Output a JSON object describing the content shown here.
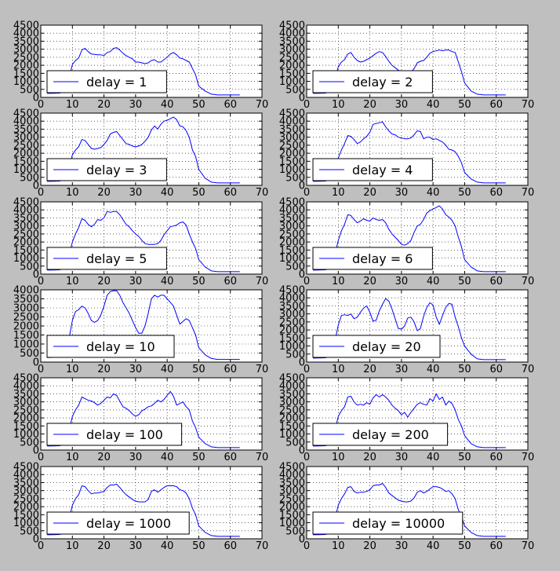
{
  "chart_data": [
    {
      "type": "line",
      "legend": "delay = 1",
      "xlim": [
        0,
        70
      ],
      "ylim": [
        0,
        4500
      ],
      "x": [
        2,
        4,
        6,
        8,
        10,
        11,
        12,
        13,
        14,
        15,
        16,
        17,
        18,
        19,
        20,
        21,
        22,
        23,
        24,
        25,
        26,
        27,
        28,
        29,
        30,
        31,
        32,
        33,
        34,
        35,
        36,
        37,
        38,
        39,
        40,
        41,
        42,
        43,
        44,
        45,
        46,
        47,
        48,
        49,
        50,
        52,
        54,
        56,
        58,
        60,
        62,
        63
      ],
      "values": [
        250,
        260,
        270,
        420,
        2050,
        2300,
        2450,
        2950,
        3050,
        2850,
        2700,
        2680,
        2650,
        2650,
        2600,
        2800,
        2850,
        3050,
        3100,
        2950,
        2750,
        2600,
        2500,
        2400,
        2200,
        2200,
        2150,
        2100,
        2150,
        2300,
        2350,
        2200,
        2200,
        2350,
        2500,
        2700,
        2800,
        2650,
        2450,
        2400,
        2300,
        2200,
        1800,
        1400,
        700,
        400,
        200,
        150,
        150,
        150,
        150,
        150
      ],
      "legend_loc": "lower left",
      "grid": true
    },
    {
      "type": "line",
      "legend": "delay = 2",
      "xlim": [
        0,
        70
      ],
      "ylim": [
        0,
        4500
      ],
      "x": [
        2,
        4,
        6,
        8,
        10,
        11,
        12,
        13,
        14,
        15,
        16,
        17,
        18,
        19,
        20,
        21,
        22,
        23,
        24,
        25,
        26,
        27,
        28,
        29,
        30,
        31,
        32,
        33,
        34,
        35,
        36,
        37,
        38,
        39,
        40,
        41,
        42,
        43,
        44,
        45,
        46,
        47,
        48,
        49,
        50,
        52,
        54,
        56,
        58,
        60,
        62,
        63
      ],
      "values": [
        250,
        260,
        270,
        420,
        1900,
        2200,
        2350,
        2700,
        2800,
        2500,
        2300,
        2200,
        2250,
        2350,
        2450,
        2600,
        2750,
        2850,
        2800,
        2550,
        2250,
        2000,
        1850,
        1700,
        1550,
        1500,
        1500,
        1550,
        1800,
        2150,
        2250,
        2300,
        2500,
        2750,
        2850,
        2900,
        2950,
        2900,
        2950,
        2950,
        2850,
        2800,
        2200,
        1600,
        900,
        400,
        200,
        150,
        150,
        150,
        150,
        150
      ],
      "legend_loc": "lower left",
      "grid": true
    },
    {
      "type": "line",
      "legend": "delay = 3",
      "xlim": [
        0,
        70
      ],
      "ylim": [
        0,
        4500
      ],
      "x": [
        2,
        4,
        6,
        8,
        10,
        11,
        12,
        13,
        14,
        15,
        16,
        17,
        18,
        19,
        20,
        21,
        22,
        23,
        24,
        25,
        26,
        27,
        28,
        29,
        30,
        31,
        32,
        33,
        34,
        35,
        36,
        37,
        38,
        39,
        40,
        41,
        42,
        43,
        44,
        45,
        46,
        47,
        48,
        49,
        50,
        52,
        54,
        56,
        58,
        60,
        62,
        63
      ],
      "values": [
        250,
        260,
        270,
        420,
        1900,
        2200,
        2400,
        2850,
        2800,
        2550,
        2300,
        2250,
        2300,
        2350,
        2550,
        2800,
        3200,
        3300,
        3350,
        3100,
        2850,
        2600,
        2550,
        2450,
        2400,
        2450,
        2550,
        2750,
        3000,
        3450,
        3700,
        3500,
        3800,
        4000,
        4050,
        4150,
        4250,
        4100,
        3700,
        3650,
        3400,
        3000,
        2200,
        1800,
        1000,
        450,
        200,
        150,
        150,
        150,
        150,
        150
      ],
      "legend_loc": "lower left",
      "grid": true
    },
    {
      "type": "line",
      "legend": "delay = 4",
      "xlim": [
        0,
        70
      ],
      "ylim": [
        0,
        4500
      ],
      "x": [
        2,
        4,
        6,
        8,
        10,
        11,
        12,
        13,
        14,
        15,
        16,
        17,
        18,
        19,
        20,
        21,
        22,
        23,
        24,
        25,
        26,
        27,
        28,
        29,
        30,
        31,
        32,
        33,
        34,
        35,
        36,
        37,
        38,
        39,
        40,
        41,
        42,
        43,
        44,
        45,
        46,
        47,
        48,
        49,
        50,
        52,
        54,
        56,
        58,
        60,
        62,
        63
      ],
      "values": [
        250,
        260,
        270,
        420,
        1700,
        2200,
        2600,
        3100,
        3050,
        2850,
        2600,
        2700,
        2900,
        3050,
        3300,
        3800,
        3850,
        3900,
        3950,
        3650,
        3400,
        3200,
        3150,
        3000,
        2950,
        2900,
        2900,
        2950,
        3150,
        3400,
        3350,
        2900,
        3000,
        3000,
        2850,
        2900,
        2800,
        2700,
        2500,
        2250,
        2200,
        2100,
        1800,
        1400,
        800,
        400,
        200,
        150,
        150,
        150,
        150,
        150
      ],
      "legend_loc": "lower left",
      "grid": true
    },
    {
      "type": "line",
      "legend": "delay = 5",
      "xlim": [
        0,
        70
      ],
      "ylim": [
        0,
        4500
      ],
      "x": [
        2,
        4,
        6,
        8,
        10,
        11,
        12,
        13,
        14,
        15,
        16,
        17,
        18,
        19,
        20,
        21,
        22,
        23,
        24,
        25,
        26,
        27,
        28,
        29,
        30,
        31,
        32,
        33,
        34,
        35,
        36,
        37,
        38,
        39,
        40,
        41,
        42,
        43,
        44,
        45,
        46,
        47,
        48,
        49,
        50,
        52,
        54,
        56,
        58,
        60,
        62,
        63
      ],
      "values": [
        250,
        260,
        270,
        420,
        2000,
        2500,
        2900,
        3450,
        3350,
        3100,
        2950,
        3100,
        3400,
        3350,
        3500,
        3900,
        3850,
        3900,
        3900,
        3700,
        3400,
        3100,
        2950,
        2700,
        2500,
        2350,
        2100,
        1900,
        1850,
        1850,
        1850,
        1900,
        2100,
        2450,
        2700,
        2950,
        3000,
        3050,
        3200,
        3250,
        3050,
        2500,
        2000,
        1600,
        900,
        450,
        200,
        150,
        150,
        150,
        150,
        150
      ],
      "legend_loc": "lower left",
      "grid": true
    },
    {
      "type": "line",
      "legend": "delay = 6",
      "xlim": [
        0,
        70
      ],
      "ylim": [
        0,
        4500
      ],
      "x": [
        2,
        4,
        6,
        8,
        10,
        11,
        12,
        13,
        14,
        15,
        16,
        17,
        18,
        19,
        20,
        21,
        22,
        23,
        24,
        25,
        26,
        27,
        28,
        29,
        30,
        31,
        32,
        33,
        34,
        35,
        36,
        37,
        38,
        39,
        40,
        41,
        42,
        43,
        44,
        45,
        46,
        47,
        48,
        49,
        50,
        52,
        54,
        56,
        58,
        60,
        62,
        63
      ],
      "values": [
        250,
        260,
        270,
        420,
        2100,
        2700,
        3100,
        3700,
        3650,
        3400,
        3200,
        3300,
        3450,
        3350,
        3300,
        3500,
        3400,
        3350,
        3400,
        3200,
        2800,
        2500,
        2300,
        2100,
        1850,
        1800,
        1900,
        2100,
        2600,
        3000,
        3100,
        3400,
        3800,
        3950,
        4050,
        4150,
        4250,
        4050,
        3700,
        3550,
        3350,
        3000,
        2300,
        1700,
        900,
        450,
        200,
        150,
        150,
        150,
        150,
        150
      ],
      "legend_loc": "lower left",
      "grid": true
    },
    {
      "type": "line",
      "legend": "delay = 10",
      "xlim": [
        0,
        70
      ],
      "ylim": [
        0,
        4000
      ],
      "x": [
        2,
        4,
        6,
        8,
        10,
        11,
        12,
        13,
        14,
        15,
        16,
        17,
        18,
        19,
        20,
        21,
        22,
        23,
        24,
        25,
        26,
        27,
        28,
        29,
        30,
        31,
        32,
        33,
        34,
        35,
        36,
        37,
        38,
        39,
        40,
        41,
        42,
        43,
        44,
        45,
        46,
        47,
        48,
        49,
        50,
        52,
        54,
        56,
        58,
        60,
        62,
        63
      ],
      "values": [
        250,
        260,
        270,
        420,
        2300,
        2800,
        2900,
        3100,
        3000,
        2700,
        2300,
        2200,
        2300,
        2600,
        3100,
        3700,
        3900,
        3950,
        3950,
        3700,
        3300,
        3000,
        2700,
        2300,
        1900,
        1600,
        1600,
        2000,
        2700,
        3500,
        3700,
        3600,
        3700,
        3700,
        3500,
        3300,
        3100,
        2600,
        2100,
        2250,
        2400,
        2300,
        1900,
        1500,
        800,
        400,
        200,
        150,
        150,
        150,
        150,
        150
      ],
      "legend_loc": "lower left",
      "grid": true
    },
    {
      "type": "line",
      "legend": "delay = 20",
      "xlim": [
        0,
        70
      ],
      "ylim": [
        0,
        4500
      ],
      "x": [
        2,
        4,
        6,
        8,
        10,
        11,
        12,
        13,
        14,
        15,
        16,
        17,
        18,
        19,
        20,
        21,
        22,
        23,
        24,
        25,
        26,
        27,
        28,
        29,
        30,
        31,
        32,
        33,
        34,
        35,
        36,
        37,
        38,
        39,
        40,
        41,
        42,
        43,
        44,
        45,
        46,
        47,
        48,
        49,
        50,
        52,
        54,
        56,
        58,
        60,
        62,
        63
      ],
      "values": [
        250,
        260,
        270,
        420,
        2300,
        2900,
        2950,
        2900,
        3000,
        2700,
        2800,
        3100,
        3350,
        3500,
        3100,
        2550,
        2600,
        3200,
        3600,
        3950,
        3800,
        3300,
        2700,
        2100,
        2050,
        2250,
        2750,
        2800,
        2500,
        1950,
        2100,
        2850,
        3400,
        3700,
        3550,
        2800,
        2350,
        2900,
        3400,
        3650,
        3600,
        2800,
        2200,
        1500,
        1000,
        500,
        200,
        150,
        150,
        150,
        150,
        150
      ],
      "legend_loc": "lower left",
      "grid": true
    },
    {
      "type": "line",
      "legend": "delay = 100",
      "xlim": [
        0,
        70
      ],
      "ylim": [
        0,
        4500
      ],
      "x": [
        2,
        4,
        6,
        8,
        10,
        11,
        12,
        13,
        14,
        15,
        16,
        17,
        18,
        19,
        20,
        21,
        22,
        23,
        24,
        25,
        26,
        27,
        28,
        29,
        30,
        31,
        32,
        33,
        34,
        35,
        36,
        37,
        38,
        39,
        40,
        41,
        42,
        43,
        44,
        45,
        46,
        47,
        48,
        49,
        50,
        52,
        54,
        56,
        58,
        60,
        62,
        63
      ],
      "values": [
        250,
        260,
        270,
        420,
        2100,
        2500,
        2800,
        3300,
        3200,
        3100,
        3050,
        2950,
        2800,
        2900,
        3100,
        3300,
        3250,
        3500,
        3400,
        3050,
        2700,
        2600,
        2450,
        2250,
        2100,
        2200,
        2450,
        2550,
        2700,
        2750,
        2900,
        3100,
        3000,
        3150,
        3400,
        3650,
        3350,
        2800,
        2900,
        3000,
        2700,
        2500,
        1800,
        1400,
        800,
        400,
        200,
        150,
        150,
        150,
        150,
        150
      ],
      "legend_loc": "lower left",
      "grid": true
    },
    {
      "type": "line",
      "legend": "delay = 200",
      "xlim": [
        0,
        70
      ],
      "ylim": [
        0,
        4500
      ],
      "x": [
        2,
        4,
        6,
        8,
        10,
        11,
        12,
        13,
        14,
        15,
        16,
        17,
        18,
        19,
        20,
        21,
        22,
        23,
        24,
        25,
        26,
        27,
        28,
        29,
        30,
        31,
        32,
        33,
        34,
        35,
        36,
        37,
        38,
        39,
        40,
        41,
        42,
        43,
        44,
        45,
        46,
        47,
        48,
        49,
        50,
        52,
        54,
        56,
        58,
        60,
        62,
        63
      ],
      "values": [
        250,
        260,
        270,
        420,
        2100,
        2450,
        2700,
        3300,
        3350,
        3000,
        2800,
        2850,
        2800,
        2950,
        2850,
        3250,
        3450,
        3300,
        3450,
        3300,
        3100,
        2800,
        2600,
        2450,
        2200,
        2350,
        2050,
        2350,
        2600,
        2850,
        2950,
        2850,
        2800,
        3200,
        3050,
        3500,
        3150,
        3300,
        2800,
        3050,
        2900,
        2500,
        1900,
        1500,
        900,
        400,
        200,
        150,
        150,
        150,
        150,
        150
      ],
      "legend_loc": "lower left",
      "grid": true
    },
    {
      "type": "line",
      "legend": "delay = 1000",
      "xlim": [
        0,
        70
      ],
      "ylim": [
        0,
        4500
      ],
      "x": [
        2,
        4,
        6,
        8,
        10,
        11,
        12,
        13,
        14,
        15,
        16,
        17,
        18,
        19,
        20,
        21,
        22,
        23,
        24,
        25,
        26,
        27,
        28,
        29,
        30,
        31,
        32,
        33,
        34,
        35,
        36,
        37,
        38,
        39,
        40,
        41,
        42,
        43,
        44,
        45,
        46,
        47,
        48,
        49,
        50,
        52,
        54,
        56,
        58,
        60,
        62,
        63
      ],
      "values": [
        250,
        260,
        270,
        420,
        2100,
        2500,
        2750,
        3300,
        3250,
        3000,
        2800,
        2850,
        2850,
        2900,
        2950,
        3200,
        3350,
        3350,
        3400,
        3200,
        2950,
        2750,
        2600,
        2450,
        2350,
        2300,
        2300,
        2300,
        2450,
        2950,
        3050,
        2900,
        3050,
        3200,
        3300,
        3300,
        3300,
        3250,
        3050,
        3000,
        2850,
        2500,
        1900,
        1500,
        800,
        400,
        200,
        150,
        150,
        150,
        150,
        150
      ],
      "legend_loc": "lower left",
      "grid": true
    },
    {
      "type": "line",
      "legend": "delay = 10000",
      "xlim": [
        0,
        70
      ],
      "ylim": [
        0,
        4500
      ],
      "x": [
        2,
        4,
        6,
        8,
        10,
        11,
        12,
        13,
        14,
        15,
        16,
        17,
        18,
        19,
        20,
        21,
        22,
        23,
        24,
        25,
        26,
        27,
        28,
        29,
        30,
        31,
        32,
        33,
        34,
        35,
        36,
        37,
        38,
        39,
        40,
        41,
        42,
        43,
        44,
        45,
        46,
        47,
        48,
        49,
        50,
        52,
        54,
        56,
        58,
        60,
        62,
        63
      ],
      "values": [
        250,
        260,
        270,
        420,
        2100,
        2500,
        2800,
        3200,
        3250,
        2950,
        2850,
        2900,
        2900,
        2950,
        3050,
        3300,
        3350,
        3350,
        3450,
        3200,
        2850,
        2700,
        2550,
        2400,
        2350,
        2300,
        2300,
        2350,
        2550,
        2900,
        3000,
        2850,
        2950,
        3100,
        3250,
        3250,
        3200,
        3100,
        2950,
        3000,
        2800,
        2500,
        1800,
        1400,
        800,
        400,
        200,
        150,
        150,
        150,
        150,
        150
      ],
      "legend_loc": "lower left",
      "grid": true
    }
  ],
  "colors": {
    "line": "#0000ff",
    "figure_bg": "#bfbfbf",
    "axes_bg": "#ffffff",
    "grid": "#000000"
  }
}
